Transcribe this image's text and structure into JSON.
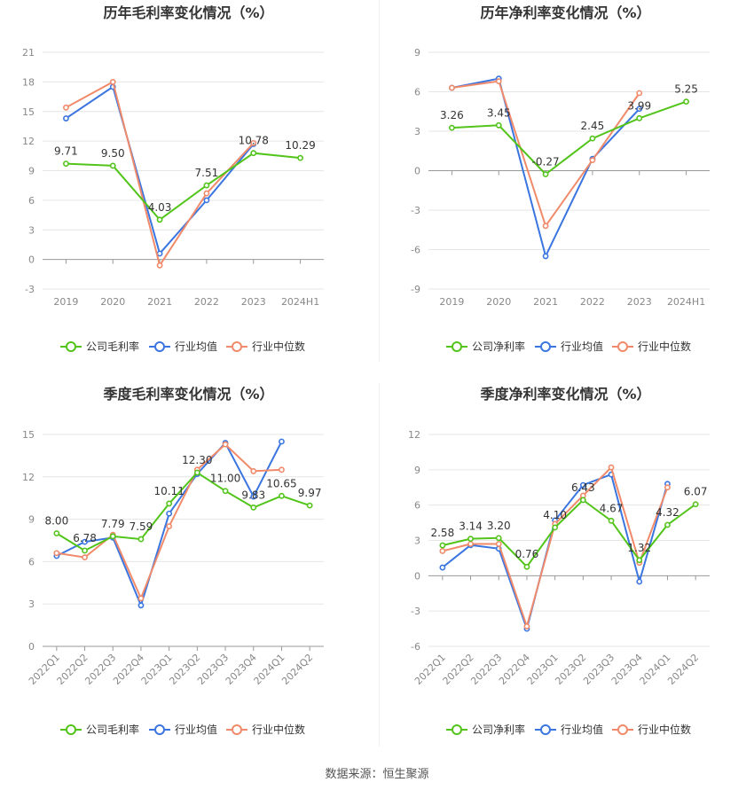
{
  "source_text": "数据来源：恒生聚源",
  "legend_colors": {
    "company": "#52c41a",
    "avg": "#3a75e0",
    "median": "#f08a6a"
  },
  "chart_data": [
    {
      "type": "line",
      "title": "历年毛利率变化情况（%）",
      "categories": [
        "2019",
        "2020",
        "2021",
        "2022",
        "2023",
        "2024H1"
      ],
      "ylim": [
        -3,
        21
      ],
      "yticks": [
        -3,
        0,
        3,
        6,
        9,
        12,
        15,
        18,
        21
      ],
      "xlabel_rotate": false,
      "series": [
        {
          "name": "公司毛利率",
          "color": "#52c41a",
          "values": [
            9.71,
            9.5,
            4.03,
            7.51,
            10.78,
            10.29
          ],
          "labels": [
            "9.71",
            "9.50",
            "4.03",
            "7.51",
            "10.78",
            "10.29"
          ]
        },
        {
          "name": "行业均值",
          "color": "#3a75e0",
          "values": [
            14.3,
            17.5,
            0.6,
            6.0,
            11.7,
            null
          ]
        },
        {
          "name": "行业中位数",
          "color": "#f08a6a",
          "values": [
            15.4,
            18.0,
            -0.6,
            6.7,
            11.8,
            null
          ]
        }
      ]
    },
    {
      "type": "line",
      "title": "历年净利率变化情况（%）",
      "categories": [
        "2019",
        "2020",
        "2021",
        "2022",
        "2023",
        "2024H1"
      ],
      "ylim": [
        -9,
        9
      ],
      "yticks": [
        -9,
        -6,
        -3,
        0,
        3,
        6,
        9
      ],
      "xlabel_rotate": false,
      "series": [
        {
          "name": "公司净利率",
          "color": "#52c41a",
          "values": [
            3.26,
            3.45,
            -0.27,
            2.45,
            3.99,
            5.25
          ],
          "labels": [
            "3.26",
            "3.45",
            "-0.27",
            "2.45",
            "3.99",
            "5.25"
          ]
        },
        {
          "name": "行业均值",
          "color": "#3a75e0",
          "values": [
            6.3,
            7.0,
            -6.5,
            0.9,
            4.7,
            null
          ]
        },
        {
          "name": "行业中位数",
          "color": "#f08a6a",
          "values": [
            6.3,
            6.8,
            -4.2,
            0.8,
            5.9,
            null
          ]
        }
      ]
    },
    {
      "type": "line",
      "title": "季度毛利率变化情况（%）",
      "categories": [
        "2022Q1",
        "2022Q2",
        "2022Q3",
        "2022Q4",
        "2023Q1",
        "2023Q2",
        "2023Q3",
        "2023Q4",
        "2024Q1",
        "2024Q2"
      ],
      "ylim": [
        0,
        15
      ],
      "yticks": [
        0,
        3,
        6,
        9,
        12,
        15
      ],
      "xlabel_rotate": true,
      "series": [
        {
          "name": "公司毛利率",
          "color": "#52c41a",
          "values": [
            8.0,
            6.78,
            7.79,
            7.59,
            10.11,
            12.3,
            11.0,
            9.83,
            10.65,
            9.97
          ],
          "labels": [
            "8.00",
            "6.78",
            "7.79",
            "7.59",
            "10.11",
            "12.30",
            "11.00",
            "9.83",
            "10.65",
            "9.97"
          ]
        },
        {
          "name": "行业均值",
          "color": "#3a75e0",
          "values": [
            6.4,
            7.4,
            7.7,
            2.9,
            9.4,
            12.2,
            14.4,
            10.6,
            14.5,
            null
          ]
        },
        {
          "name": "行业中位数",
          "color": "#f08a6a",
          "values": [
            6.6,
            6.3,
            7.9,
            3.4,
            8.5,
            12.5,
            14.3,
            12.4,
            12.5,
            null
          ]
        }
      ]
    },
    {
      "type": "line",
      "title": "季度净利率变化情况（%）",
      "categories": [
        "2022Q1",
        "2022Q2",
        "2022Q3",
        "2022Q4",
        "2023Q1",
        "2023Q2",
        "2023Q3",
        "2023Q4",
        "2024Q1",
        "2024Q2"
      ],
      "ylim": [
        -6,
        12
      ],
      "yticks": [
        -6,
        -3,
        0,
        3,
        6,
        9,
        12
      ],
      "xlabel_rotate": true,
      "series": [
        {
          "name": "公司净利率",
          "color": "#52c41a",
          "values": [
            2.58,
            3.14,
            3.2,
            0.76,
            4.1,
            6.43,
            4.67,
            1.32,
            4.32,
            6.07
          ],
          "labels": [
            "2.58",
            "3.14",
            "3.20",
            "0.76",
            "4.10",
            "6.43",
            "4.67",
            "1.32",
            "4.32",
            "6.07"
          ]
        },
        {
          "name": "行业均值",
          "color": "#3a75e0",
          "values": [
            0.7,
            2.6,
            2.3,
            -4.5,
            4.7,
            7.7,
            8.6,
            -0.5,
            7.8,
            null
          ]
        },
        {
          "name": "行业中位数",
          "color": "#f08a6a",
          "values": [
            2.1,
            2.7,
            2.7,
            -4.3,
            4.4,
            6.8,
            9.2,
            1.1,
            7.5,
            null
          ]
        }
      ]
    }
  ]
}
